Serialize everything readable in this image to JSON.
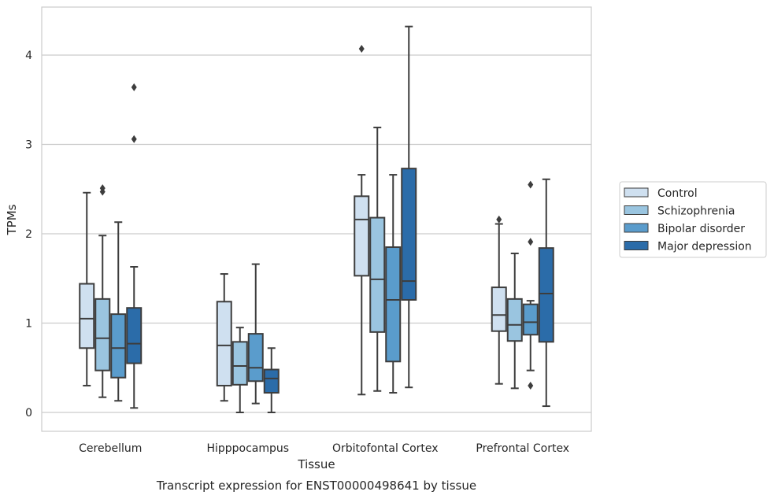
{
  "chart_data": {
    "type": "box",
    "title": "",
    "caption": "Transcript expression for ENST00000498641 by tissue",
    "xlabel": "Tissue",
    "ylabel": "TPMs",
    "ylim": [
      -0.2,
      4.55
    ],
    "yticks": [
      0,
      1,
      2,
      3,
      4
    ],
    "grid": "horizontal",
    "legend_position": "right",
    "categories": [
      "Cerebellum",
      "Hipppocampus",
      "Orbitofontal Cortex",
      "Prefrontal Cortex"
    ],
    "series": [
      {
        "name": "Control",
        "color": "#cfe0f0",
        "boxes": [
          {
            "whisker_low": 0.3,
            "q1": 0.72,
            "median": 1.05,
            "q3": 1.44,
            "whisker_high": 2.46,
            "outliers": []
          },
          {
            "whisker_low": 0.13,
            "q1": 0.3,
            "median": 0.75,
            "q3": 1.24,
            "whisker_high": 1.55,
            "outliers": []
          },
          {
            "whisker_low": 0.2,
            "q1": 1.53,
            "median": 2.16,
            "q3": 2.42,
            "whisker_high": 2.66,
            "outliers": [
              4.07
            ]
          },
          {
            "whisker_low": 0.32,
            "q1": 0.91,
            "median": 1.09,
            "q3": 1.4,
            "whisker_high": 2.11,
            "outliers": [
              2.16
            ]
          }
        ]
      },
      {
        "name": "Schizophrenia",
        "color": "#9ac5e0",
        "boxes": [
          {
            "whisker_low": 0.17,
            "q1": 0.47,
            "median": 0.83,
            "q3": 1.27,
            "whisker_high": 1.98,
            "outliers": [
              2.47,
              2.51
            ]
          },
          {
            "whisker_low": 0.0,
            "q1": 0.31,
            "median": 0.52,
            "q3": 0.79,
            "whisker_high": 0.95,
            "outliers": []
          },
          {
            "whisker_low": 0.24,
            "q1": 0.9,
            "median": 1.49,
            "q3": 2.18,
            "whisker_high": 3.19,
            "outliers": []
          },
          {
            "whisker_low": 0.27,
            "q1": 0.8,
            "median": 0.98,
            "q3": 1.27,
            "whisker_high": 1.78,
            "outliers": []
          }
        ]
      },
      {
        "name": "Bipolar disorder",
        "color": "#5a9ccc",
        "boxes": [
          {
            "whisker_low": 0.13,
            "q1": 0.39,
            "median": 0.72,
            "q3": 1.1,
            "whisker_high": 2.13,
            "outliers": []
          },
          {
            "whisker_low": 0.1,
            "q1": 0.35,
            "median": 0.5,
            "q3": 0.88,
            "whisker_high": 1.66,
            "outliers": []
          },
          {
            "whisker_low": 0.22,
            "q1": 0.57,
            "median": 1.26,
            "q3": 1.85,
            "whisker_high": 2.66,
            "outliers": []
          },
          {
            "whisker_low": 0.47,
            "q1": 0.87,
            "median": 1.01,
            "q3": 1.21,
            "whisker_high": 1.25,
            "outliers": [
              0.3,
              1.91,
              2.55
            ]
          }
        ]
      },
      {
        "name": "Major depression",
        "color": "#2b6ca9",
        "boxes": [
          {
            "whisker_low": 0.05,
            "q1": 0.55,
            "median": 0.77,
            "q3": 1.17,
            "whisker_high": 1.63,
            "outliers": [
              3.06,
              3.64
            ]
          },
          {
            "whisker_low": 0.0,
            "q1": 0.22,
            "median": 0.38,
            "q3": 0.48,
            "whisker_high": 0.72,
            "outliers": []
          },
          {
            "whisker_low": 0.28,
            "q1": 1.26,
            "median": 1.47,
            "q3": 2.73,
            "whisker_high": 4.32,
            "outliers": []
          },
          {
            "whisker_low": 0.07,
            "q1": 0.79,
            "median": 1.33,
            "q3": 1.84,
            "whisker_high": 2.61,
            "outliers": []
          }
        ]
      }
    ]
  }
}
